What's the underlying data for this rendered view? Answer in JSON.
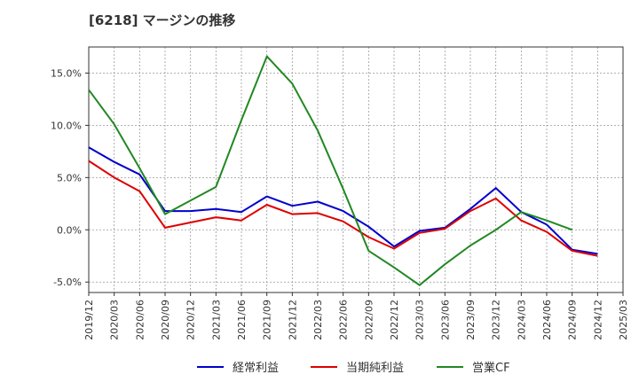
{
  "chart_data": {
    "type": "line",
    "title": "[6218]  マージンの推移",
    "x": [
      "2019/12",
      "2020/03",
      "2020/06",
      "2020/09",
      "2020/12",
      "2021/03",
      "2021/06",
      "2021/09",
      "2021/12",
      "2022/03",
      "2022/06",
      "2022/09",
      "2022/12",
      "2023/03",
      "2023/06",
      "2023/09",
      "2023/12",
      "2024/03",
      "2024/06",
      "2024/09",
      "2024/12",
      "2025/03"
    ],
    "ylim": [
      -6.0,
      17.5
    ],
    "yticks": [
      -5.0,
      0.0,
      5.0,
      10.0,
      15.0
    ],
    "ytick_labels": [
      "-5.0%",
      "0.0%",
      "5.0%",
      "10.0%",
      "15.0%"
    ],
    "grid": true,
    "legend_position": "bottom",
    "series": [
      {
        "name": "経常利益",
        "color": "#0000cc",
        "values": [
          7.9,
          6.5,
          5.3,
          1.8,
          1.8,
          2.0,
          1.7,
          3.2,
          2.3,
          2.7,
          1.8,
          0.3,
          -1.6,
          -0.1,
          0.2,
          2.0,
          4.0,
          1.7,
          0.5,
          -1.9,
          -2.3,
          null
        ]
      },
      {
        "name": "当期純利益",
        "color": "#dd0000",
        "values": [
          6.6,
          5.0,
          3.7,
          0.2,
          0.7,
          1.2,
          0.9,
          2.4,
          1.5,
          1.6,
          0.8,
          -0.7,
          -1.8,
          -0.3,
          0.1,
          1.8,
          3.0,
          0.9,
          -0.2,
          -2.0,
          -2.5,
          null
        ]
      },
      {
        "name": "営業CF",
        "color": "#228822",
        "values": [
          13.4,
          10.1,
          5.9,
          1.5,
          null,
          4.1,
          10.5,
          16.6,
          14.0,
          9.5,
          3.9,
          -2.0,
          -3.6,
          -5.3,
          -3.3,
          -1.5,
          0.0,
          1.7,
          0.9,
          0.0,
          null,
          null
        ]
      }
    ]
  }
}
